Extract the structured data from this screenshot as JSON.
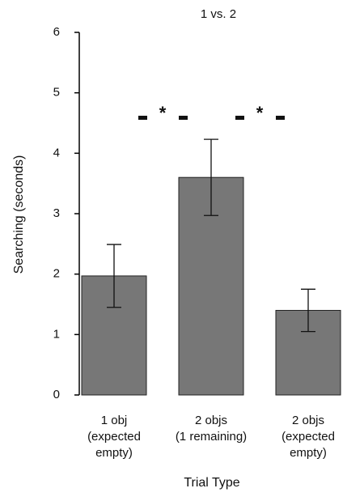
{
  "chart_data": {
    "type": "bar",
    "title": "1 vs. 2",
    "y_label": "Searching (seconds)",
    "x_label": "Trial Type",
    "categories": [
      [
        "1 obj",
        "(expected",
        "empty)"
      ],
      [
        "2 objs",
        "(1 remaining)"
      ],
      [
        "2 objs",
        "(expected",
        "empty)"
      ]
    ],
    "values": [
      1.97,
      3.6,
      1.4
    ],
    "errors": [
      0.52,
      0.63,
      0.35
    ],
    "color": "#777777",
    "ylim": [
      0,
      6
    ],
    "yticks": [
      0,
      1,
      2,
      3,
      4,
      5,
      6
    ],
    "grid": false,
    "annotations": [
      "*",
      "*"
    ]
  }
}
